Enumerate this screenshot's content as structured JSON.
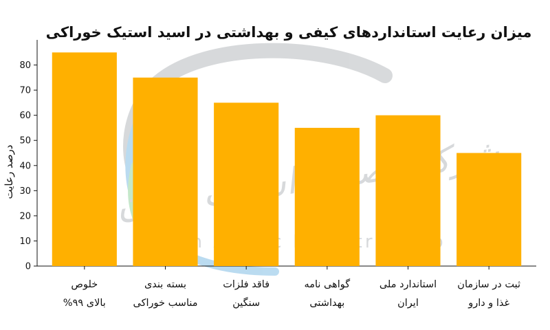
{
  "chart_data": {
    "type": "bar",
    "title": "میزان رعایت استانداردهای کیفی و بهداشتی در اسید استیک خوراکی",
    "xlabel": "",
    "ylabel": "درصد رعایت",
    "ylim": [
      0,
      90
    ],
    "yticks": [
      0,
      10,
      20,
      30,
      40,
      50,
      60,
      70,
      80
    ],
    "categories": [
      [
        "خلوص",
        "بالای ۹۹%"
      ],
      [
        "بسته بندی",
        "مناسب خوراکی"
      ],
      [
        "فاقد فلزات",
        "سنگین"
      ],
      [
        "گواهی نامه",
        "بهداشتی"
      ],
      [
        "استاندارد ملی",
        "ایران"
      ],
      [
        "ثبت در سازمان",
        "غذا و دارو"
      ]
    ],
    "values": [
      85,
      75,
      65,
      55,
      60,
      45
    ],
    "bar_color": "#FFB000",
    "grid": false,
    "legend": "none"
  },
  "watermark": {
    "text_fa": "شرکت صنایع استیک ایران",
    "text_en": "Iran Acetic Industries Co",
    "colors": [
      "#9aa0a6",
      "#4aa3d8",
      "#5cbf6a"
    ]
  }
}
